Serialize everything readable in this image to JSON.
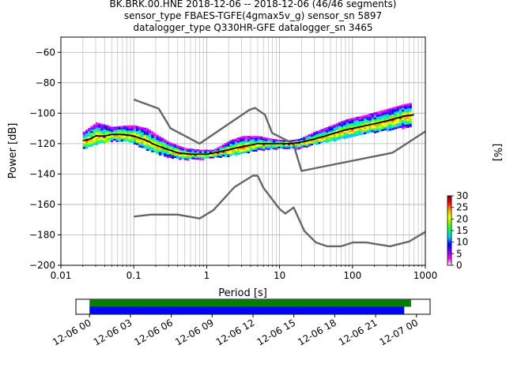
{
  "chart_data": [
    {
      "type": "heatmap",
      "title_lines": [
        "BK.BRK.00.HNE   2018-12-06 -- 2018-12-06  (46/46 segments)",
        "sensor_type FBAES-TGFE(4gmax5v_g) sensor_sn 5897",
        "datalogger_type Q330HR-GFE datalogger_sn 3465"
      ],
      "xlabel": "Period [s]",
      "ylabel": "Power [dB]",
      "xscale": "log",
      "xlim": [
        0.01,
        1000
      ],
      "ylim": [
        -200,
        -50
      ],
      "x_ticks": [
        {
          "value": 0.01,
          "label": "0.01"
        },
        {
          "value": 0.1,
          "label": "0.1"
        },
        {
          "value": 1,
          "label": "1"
        },
        {
          "value": 10,
          "label": "10"
        },
        {
          "value": 100,
          "label": "100"
        },
        {
          "value": 1000,
          "label": "1000"
        }
      ],
      "y_ticks": [
        {
          "value": -60,
          "label": "−60"
        },
        {
          "value": -80,
          "label": "−80"
        },
        {
          "value": -100,
          "label": "−100"
        },
        {
          "value": -120,
          "label": "−120"
        },
        {
          "value": -140,
          "label": "−140"
        },
        {
          "value": -160,
          "label": "−160"
        },
        {
          "value": -180,
          "label": "−180"
        },
        {
          "value": -200,
          "label": "−200"
        }
      ],
      "grid": true,
      "mode_curve": [
        [
          0.02,
          -118
        ],
        [
          0.025,
          -117
        ],
        [
          0.03,
          -115
        ],
        [
          0.04,
          -115
        ],
        [
          0.05,
          -114
        ],
        [
          0.07,
          -114
        ],
        [
          0.1,
          -115
        ],
        [
          0.15,
          -118
        ],
        [
          0.2,
          -121
        ],
        [
          0.3,
          -124
        ],
        [
          0.4,
          -126
        ],
        [
          0.6,
          -127
        ],
        [
          0.8,
          -127
        ],
        [
          1.0,
          -127
        ],
        [
          1.3,
          -126
        ],
        [
          2,
          -124
        ],
        [
          3,
          -122
        ],
        [
          4,
          -121
        ],
        [
          5,
          -120
        ],
        [
          7,
          -120
        ],
        [
          10,
          -120
        ],
        [
          15,
          -120
        ],
        [
          20,
          -119
        ],
        [
          30,
          -117
        ],
        [
          50,
          -114
        ],
        [
          80,
          -111
        ],
        [
          100,
          -110
        ],
        [
          200,
          -107
        ],
        [
          300,
          -105
        ],
        [
          500,
          -102
        ],
        [
          700,
          -101
        ]
      ],
      "nhnm": [
        [
          0.1,
          -91
        ],
        [
          0.22,
          -97
        ],
        [
          0.32,
          -110
        ],
        [
          0.8,
          -120
        ],
        [
          3.8,
          -98
        ],
        [
          4.6,
          -96.5
        ],
        [
          6.3,
          -101
        ],
        [
          7.9,
          -113
        ],
        [
          15.4,
          -120
        ],
        [
          20,
          -138
        ],
        [
          354.8,
          -126
        ],
        [
          1000,
          -112
        ]
      ],
      "nlnm": [
        [
          0.1,
          -168
        ],
        [
          0.17,
          -166.7
        ],
        [
          0.4,
          -166.7
        ],
        [
          0.8,
          -169.2
        ],
        [
          1.24,
          -163.7
        ],
        [
          2.4,
          -148.6
        ],
        [
          4.3,
          -141.1
        ],
        [
          5.0,
          -141.1
        ],
        [
          6.0,
          -149
        ],
        [
          10,
          -163
        ],
        [
          12,
          -166
        ],
        [
          15.6,
          -162
        ],
        [
          21.9,
          -177.5
        ],
        [
          31.6,
          -185
        ],
        [
          45,
          -187.5
        ],
        [
          70,
          -187.5
        ],
        [
          101,
          -185
        ],
        [
          154,
          -185
        ],
        [
          328,
          -187.5
        ],
        [
          600,
          -184.4
        ],
        [
          1000,
          -178
        ]
      ],
      "psd_band": [
        [
          0.02,
          -112,
          -123
        ],
        [
          0.03,
          -106,
          -120
        ],
        [
          0.05,
          -109,
          -118
        ],
        [
          0.08,
          -108,
          -118
        ],
        [
          0.1,
          -108,
          -120
        ],
        [
          0.15,
          -110,
          -124
        ],
        [
          0.2,
          -114,
          -126
        ],
        [
          0.3,
          -119,
          -129
        ],
        [
          0.5,
          -123,
          -130
        ],
        [
          0.8,
          -124,
          -130
        ],
        [
          1.2,
          -124,
          -129
        ],
        [
          2,
          -118,
          -128
        ],
        [
          3,
          -115,
          -126
        ],
        [
          5,
          -115,
          -124
        ],
        [
          8,
          -117,
          -123
        ],
        [
          12,
          -118,
          -123
        ],
        [
          18,
          -117,
          -123
        ],
        [
          30,
          -112,
          -120
        ],
        [
          50,
          -108,
          -118
        ],
        [
          80,
          -104,
          -116
        ],
        [
          150,
          -101,
          -113
        ],
        [
          300,
          -97,
          -111
        ],
        [
          500,
          -94,
          -109
        ],
        [
          650,
          -93,
          -108
        ]
      ],
      "colorbar": {
        "label": "[%]",
        "range": [
          0,
          30
        ],
        "ticks": [
          "0",
          "5",
          "10",
          "15",
          "20",
          "25",
          "30"
        ],
        "stops": [
          "#ffffff",
          "#ff00ff",
          "#7a00ff",
          "#0000ff",
          "#00c8ff",
          "#00ff7a",
          "#7aff00",
          "#ffff00",
          "#ffa000",
          "#ff0000",
          "#800000"
        ]
      }
    },
    {
      "type": "timeline",
      "time_ticks": [
        "12-06 00",
        "12-06 03",
        "12-06 06",
        "12-06 09",
        "12-06 12",
        "12-06 15",
        "12-06 18",
        "12-06 21",
        "12-07 00"
      ],
      "xlim_hours": [
        -1,
        25
      ],
      "bars": [
        {
          "start_hour": 0,
          "end_hour": 23.6,
          "color": "#008000"
        },
        {
          "start_hour": 0,
          "end_hour": 23.1,
          "color": "#0000ff"
        }
      ]
    }
  ]
}
